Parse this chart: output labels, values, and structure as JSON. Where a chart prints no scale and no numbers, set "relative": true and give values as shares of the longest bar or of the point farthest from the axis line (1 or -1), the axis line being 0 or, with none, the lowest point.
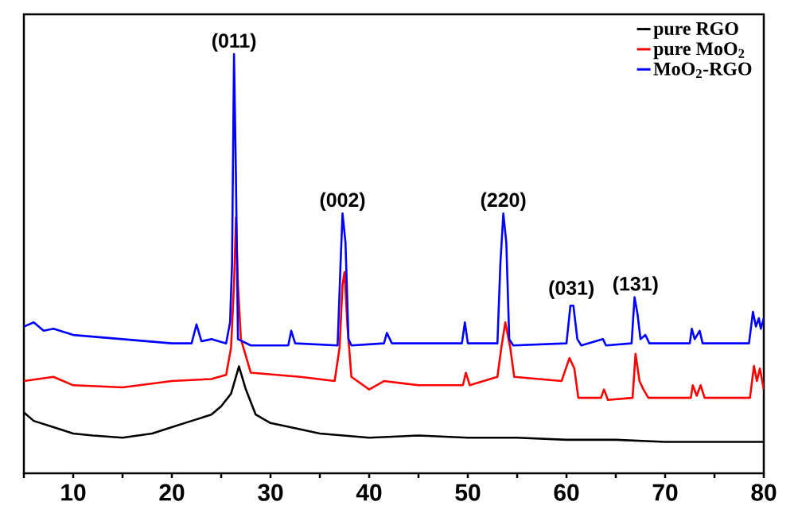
{
  "chart_data": {
    "type": "line",
    "relative": true,
    "xlim": [
      5,
      80
    ],
    "xticks": [
      {
        "value": 5,
        "label": null
      },
      10,
      {
        "value": 15,
        "label": null
      },
      20,
      {
        "value": 25,
        "label": null
      },
      30,
      {
        "value": 35,
        "label": null
      },
      40,
      {
        "value": 45,
        "label": null
      },
      50,
      {
        "value": 55,
        "label": null
      },
      60,
      {
        "value": 65,
        "label": null
      },
      70,
      {
        "value": 75,
        "label": null
      },
      80
    ],
    "legend": "top right",
    "series": [
      {
        "name": "pure RGO",
        "color": "#000000",
        "x": [
          5,
          6,
          8,
          10,
          12,
          15,
          18,
          20,
          22,
          24,
          25,
          26,
          26.8,
          27.5,
          28.5,
          30,
          32,
          35,
          40,
          45,
          50,
          55,
          60,
          65,
          70,
          75,
          80
        ],
        "values": [
          0.145,
          0.125,
          0.11,
          0.095,
          0.09,
          0.085,
          0.095,
          0.11,
          0.125,
          0.14,
          0.16,
          0.19,
          0.255,
          0.2,
          0.14,
          0.12,
          0.11,
          0.095,
          0.085,
          0.09,
          0.085,
          0.085,
          0.08,
          0.08,
          0.075,
          0.075,
          0.075
        ]
      },
      {
        "name": "pure MoO$_{2}$",
        "color": "#ff0000",
        "x": [
          5,
          8,
          10,
          15,
          20,
          24,
          25.5,
          26,
          26.3,
          26.5,
          26.7,
          27,
          28,
          33,
          36.5,
          37,
          37.3,
          37.5,
          37.8,
          38.2,
          40,
          41.5,
          45,
          49.5,
          49.8,
          50.2,
          53,
          53.4,
          53.8,
          54.3,
          54.7,
          59.5,
          60.3,
          60.8,
          61.2,
          63.5,
          63.8,
          64.2,
          66.7,
          67,
          67.4,
          67.8,
          68.3,
          72.6,
          72.8,
          73.2,
          73.6,
          74,
          78.6,
          79,
          79.3,
          79.6,
          80
        ],
        "values": [
          0.22,
          0.23,
          0.21,
          0.205,
          0.22,
          0.225,
          0.235,
          0.3,
          0.45,
          0.61,
          0.45,
          0.32,
          0.24,
          0.23,
          0.22,
          0.3,
          0.45,
          0.48,
          0.35,
          0.23,
          0.2,
          0.22,
          0.21,
          0.21,
          0.24,
          0.21,
          0.23,
          0.3,
          0.36,
          0.3,
          0.23,
          0.22,
          0.275,
          0.25,
          0.18,
          0.18,
          0.2,
          0.175,
          0.18,
          0.285,
          0.22,
          0.2,
          0.18,
          0.18,
          0.21,
          0.185,
          0.21,
          0.18,
          0.18,
          0.256,
          0.22,
          0.25,
          0.2
        ]
      },
      {
        "name": "MoO$_{2}$-RGO",
        "color": "#0000ff",
        "x": [
          5,
          6,
          7,
          8,
          10,
          15,
          20,
          22,
          22.5,
          23,
          24,
          25.5,
          25.9,
          26.1,
          26.3,
          26.5,
          26.7,
          28,
          31.8,
          32.1,
          32.5,
          36.8,
          37.1,
          37.3,
          37.6,
          37.9,
          38.2,
          41.5,
          41.8,
          42.3,
          49.4,
          49.7,
          50,
          53,
          53.3,
          53.6,
          53.9,
          54.2,
          54.6,
          60,
          60.4,
          60.7,
          61.1,
          61.5,
          63.7,
          64,
          66.6,
          66.9,
          67.2,
          67.5,
          68,
          68.4,
          72.5,
          72.7,
          73,
          73.5,
          73.8,
          78.5,
          78.9,
          79.2,
          79.5,
          79.7,
          80
        ],
        "values": [
          0.35,
          0.36,
          0.34,
          0.345,
          0.33,
          0.32,
          0.31,
          0.31,
          0.355,
          0.315,
          0.32,
          0.31,
          0.36,
          0.5,
          1.0,
          0.7,
          0.32,
          0.305,
          0.305,
          0.34,
          0.31,
          0.305,
          0.5,
          0.62,
          0.55,
          0.32,
          0.305,
          0.31,
          0.335,
          0.31,
          0.31,
          0.36,
          0.31,
          0.31,
          0.5,
          0.62,
          0.55,
          0.32,
          0.305,
          0.31,
          0.4,
          0.4,
          0.32,
          0.305,
          0.32,
          0.305,
          0.31,
          0.42,
          0.38,
          0.32,
          0.33,
          0.31,
          0.31,
          0.345,
          0.32,
          0.34,
          0.31,
          0.31,
          0.385,
          0.35,
          0.37,
          0.345,
          0.37
        ]
      }
    ],
    "annotations": [
      {
        "text": "(011)",
        "x": 26.3,
        "y": 1.0
      },
      {
        "text": "(002)",
        "x": 37.3,
        "y": 0.62
      },
      {
        "text": "(220)",
        "x": 53.6,
        "y": 0.62
      },
      {
        "text": "(031)",
        "x": 60.5,
        "y": 0.41
      },
      {
        "text": "(131)",
        "x": 67,
        "y": 0.42
      }
    ]
  }
}
